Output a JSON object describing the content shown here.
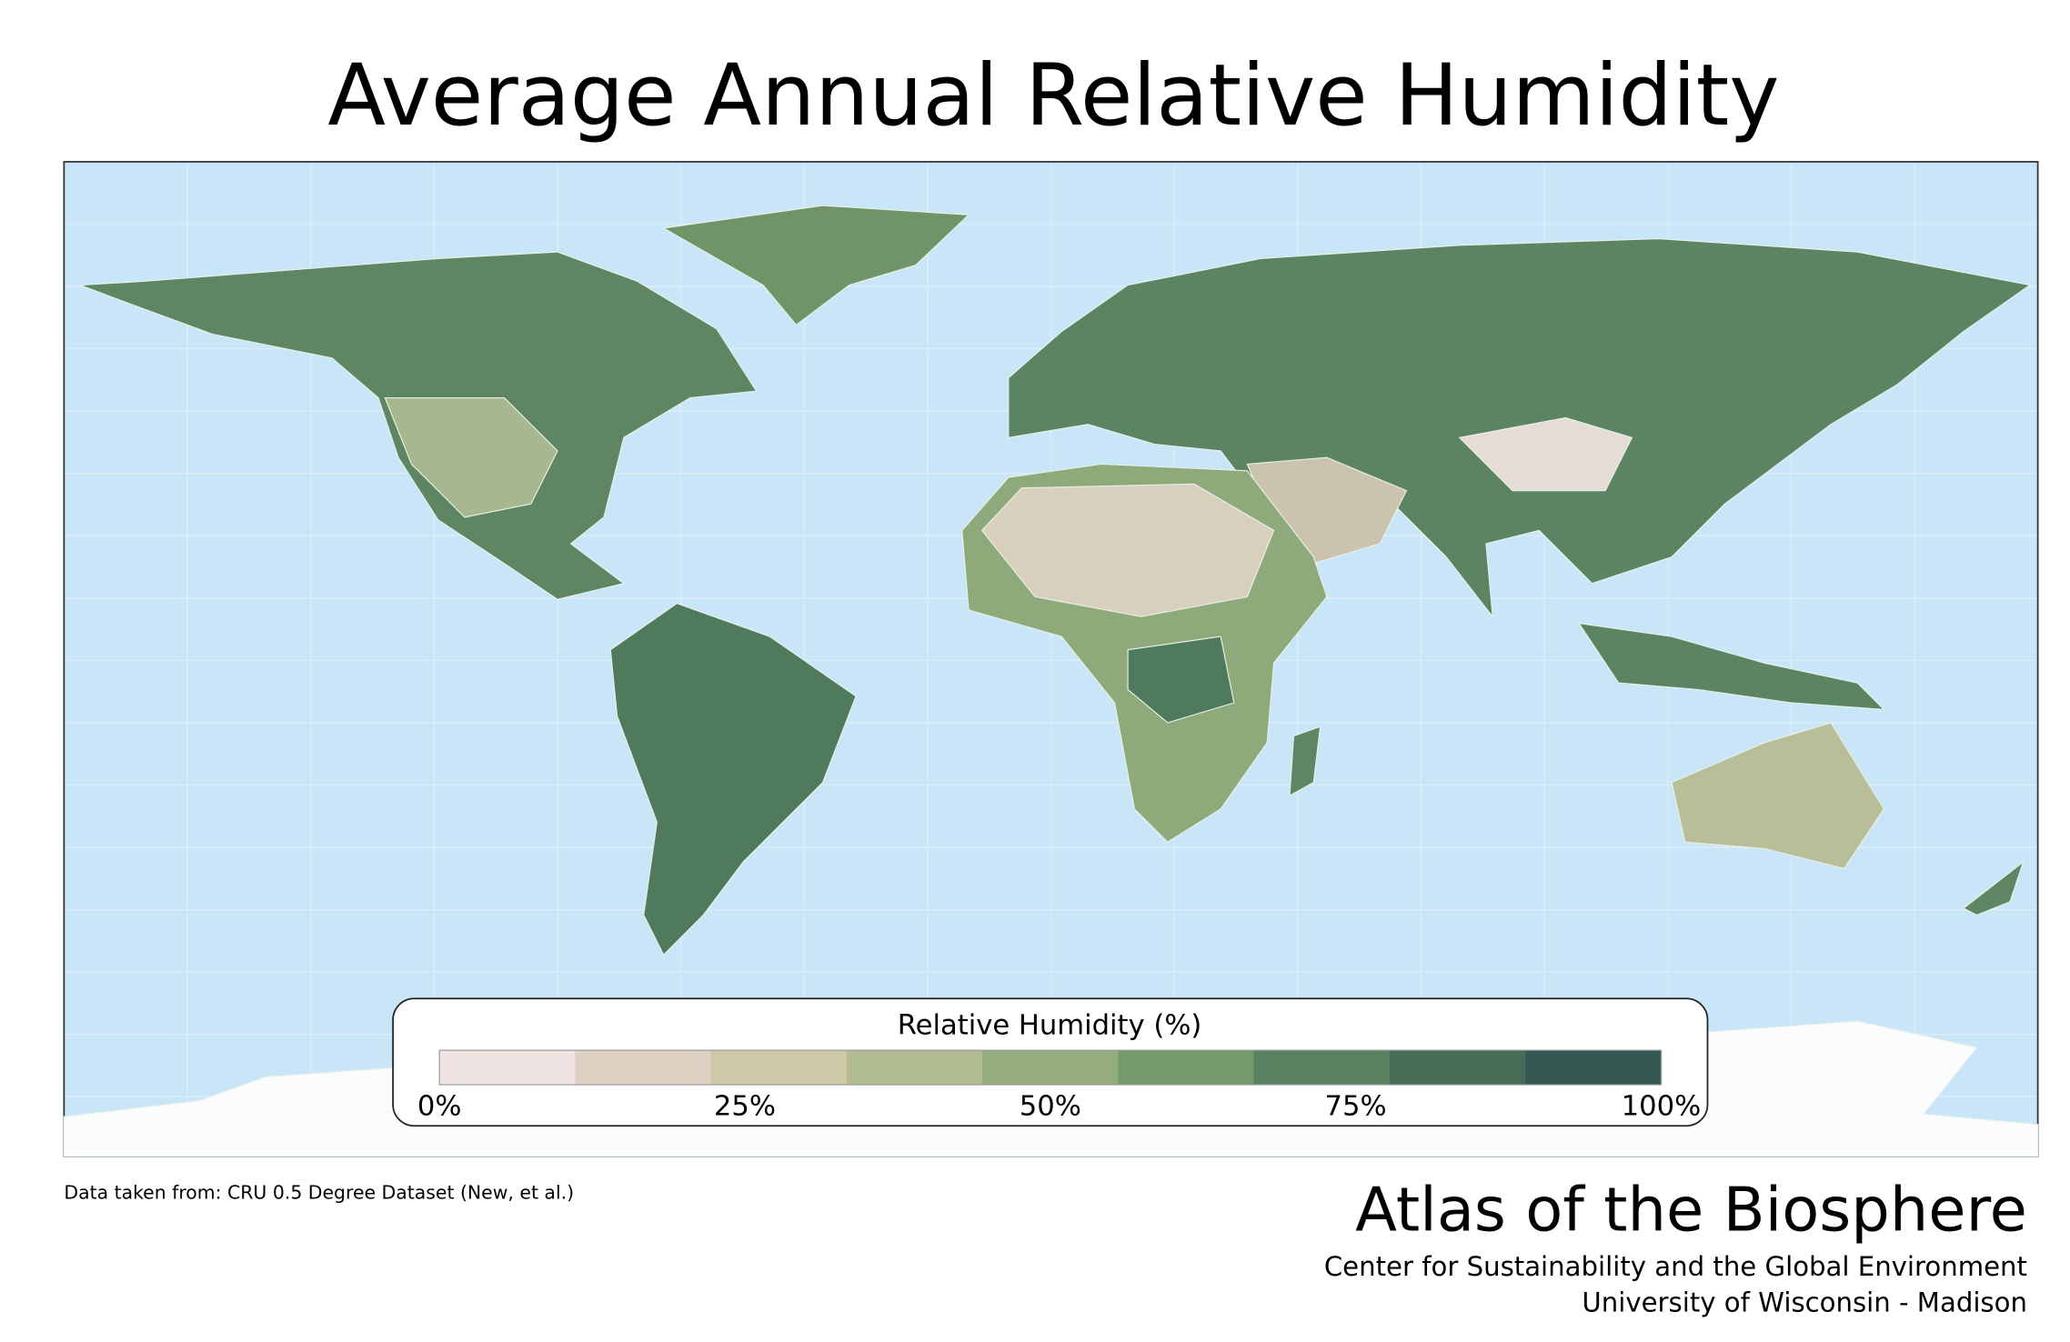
{
  "title": "Average Annual Relative Humidity",
  "legend": {
    "title": "Relative Humidity (%)",
    "labels": [
      "0%",
      "25%",
      "50%",
      "75%",
      "100%"
    ],
    "colors": [
      "#efe4e2",
      "#ddd1c4",
      "#cbc9a8",
      "#b2bc91",
      "#95ad7c",
      "#76996b",
      "#5a8160",
      "#476c58",
      "#355853"
    ]
  },
  "source": "Data taken from: CRU 0.5 Degree Dataset (New, et al.)",
  "credits": {
    "name": "Atlas of the Biosphere",
    "lines": [
      "Center for Sustainability and the Global Environment",
      "University of Wisconsin - Madison"
    ]
  }
}
